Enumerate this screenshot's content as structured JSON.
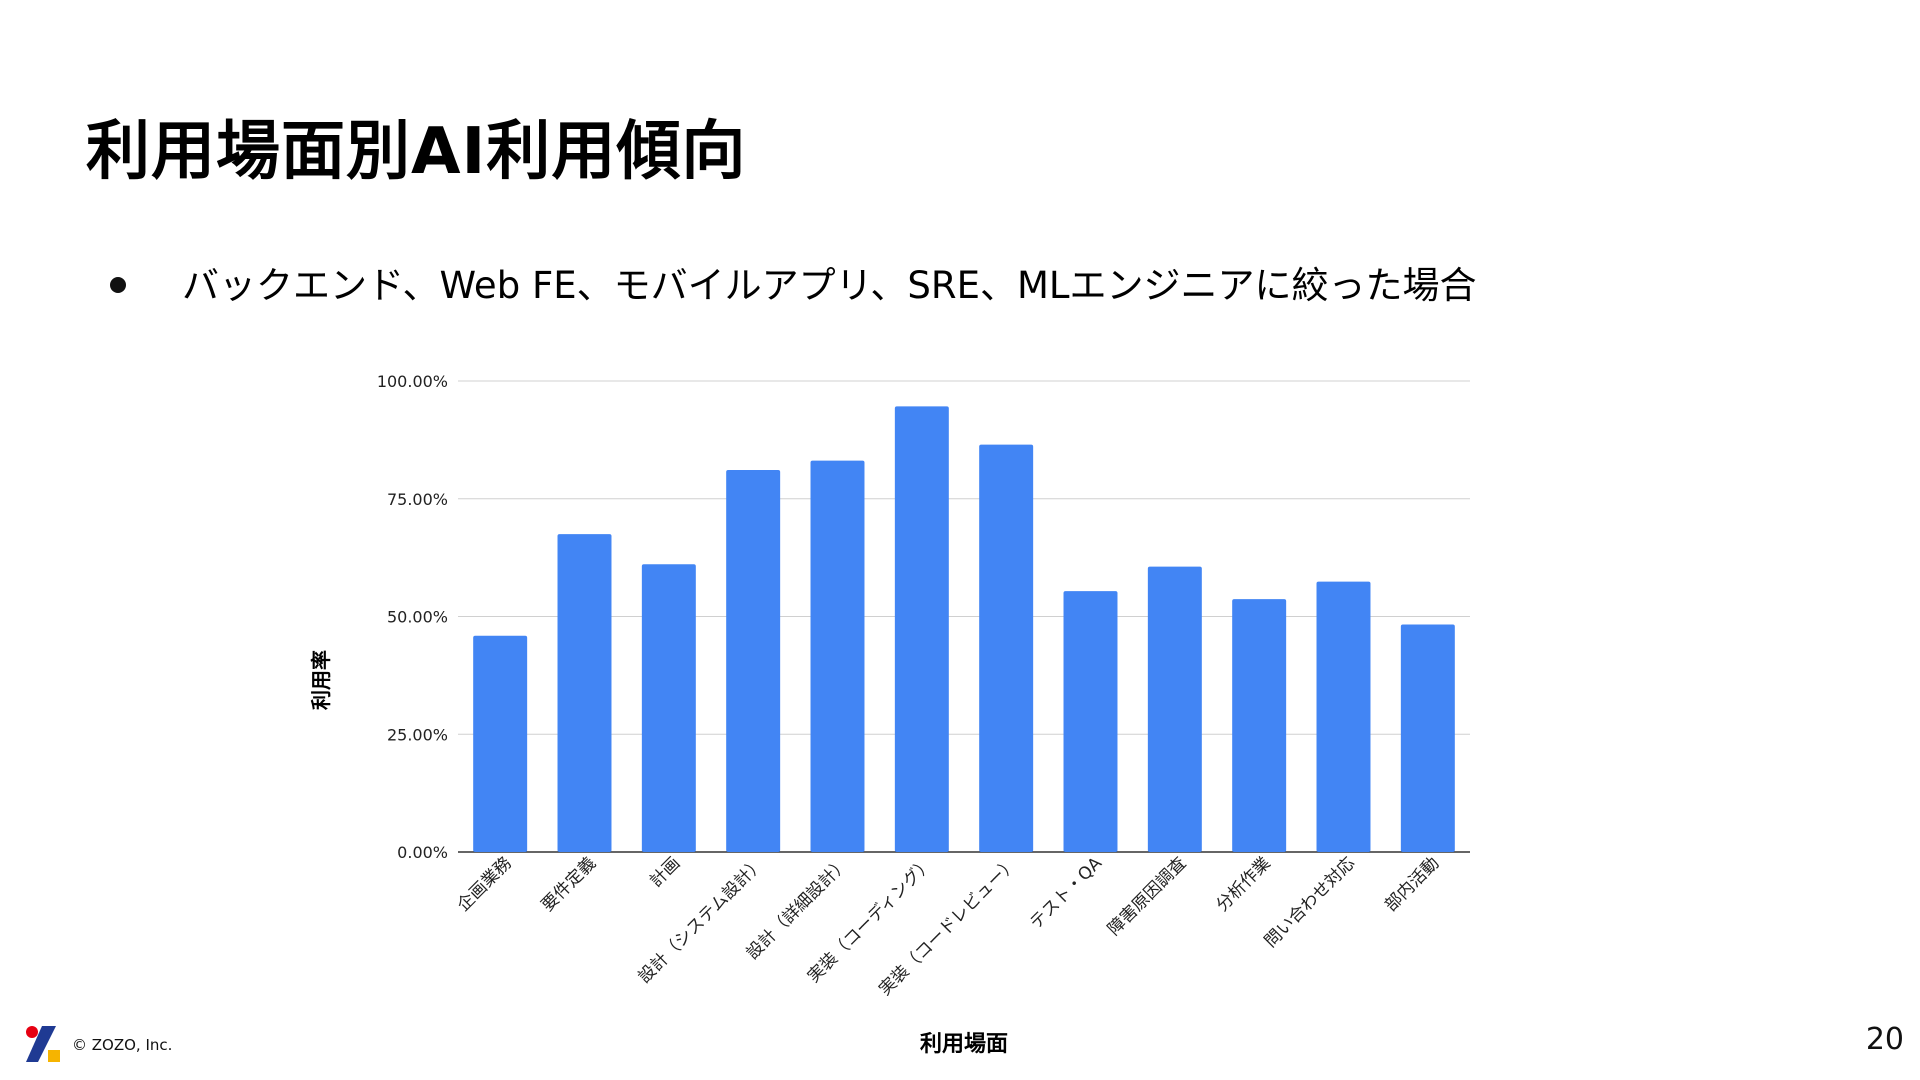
{
  "slide": {
    "title": "利用場面別AI利用傾向",
    "bullet": "バックエンド、Web FE、モバイルアプリ、SRE、MLエンジニアに絞った場合",
    "copyright": "© ZOZO, Inc.",
    "page_number": "20"
  },
  "colors": {
    "bar": "#4285F4",
    "grid": "#d0d0d0",
    "axis": "#333333",
    "logo_red": "#E60012",
    "logo_navy": "#1F3A93",
    "logo_yellow": "#F6B400"
  },
  "chart_data": {
    "type": "bar",
    "title": "",
    "xlabel": "利用場面",
    "ylabel": "利用率",
    "ylim": [
      0,
      100
    ],
    "yticks": [
      0,
      25,
      50,
      75,
      100
    ],
    "ytick_labels": [
      "0.00%",
      "25.00%",
      "50.00%",
      "75.00%",
      "100.00%"
    ],
    "grid": true,
    "categories": [
      "企画業務",
      "要件定義",
      "計画",
      "設計（システム設計）",
      "設計（詳細設計）",
      "実装（コーディング）",
      "実装（コードレビュー）",
      "テスト・QA",
      "障害原因調査",
      "分析作業",
      "問い合わせ対応",
      "部内活動"
    ],
    "values": [
      45.9,
      67.5,
      61.1,
      81.1,
      83.1,
      94.6,
      86.5,
      55.4,
      60.6,
      53.7,
      57.4,
      48.3
    ]
  }
}
